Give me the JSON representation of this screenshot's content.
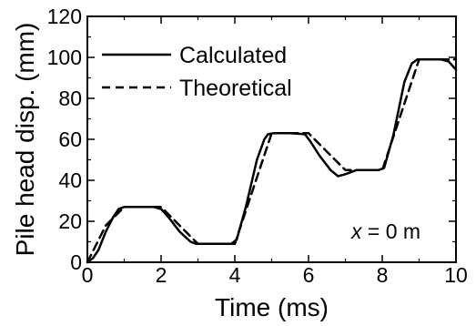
{
  "chart_data": {
    "type": "line",
    "xlabel": "Time (ms)",
    "ylabel": "Pile head disp. (mm)",
    "xlim": [
      0,
      10
    ],
    "ylim": [
      0,
      120
    ],
    "xticks": [
      "0",
      "2",
      "4",
      "6",
      "8",
      "10"
    ],
    "yticks": [
      "0",
      "20",
      "40",
      "60",
      "80",
      "100",
      "120"
    ],
    "xtick_values": [
      0,
      2,
      4,
      6,
      8,
      10
    ],
    "ytick_values": [
      0,
      20,
      40,
      60,
      80,
      100,
      120
    ],
    "grid": false,
    "legend_position": "top-left",
    "annotation": {
      "variable": "x",
      "rest": " = 0 m"
    },
    "series": [
      {
        "name": "Calculated",
        "style": "solid",
        "color": "#000000",
        "x": [
          0,
          0.15,
          0.3,
          0.5,
          0.7,
          0.85,
          1.0,
          1.5,
          1.8,
          2.0,
          2.2,
          2.5,
          2.8,
          2.95,
          3.5,
          3.9,
          4.05,
          4.3,
          4.6,
          4.8,
          4.9,
          5.05,
          5.5,
          5.9,
          6.05,
          6.3,
          6.6,
          6.8,
          7.0,
          7.3,
          7.6,
          7.9,
          8.05,
          8.3,
          8.6,
          8.8,
          8.95,
          9.2,
          9.6,
          9.8,
          10.0
        ],
        "y": [
          0,
          2,
          6,
          15,
          22,
          26,
          27,
          27,
          27,
          26,
          22,
          15,
          10,
          9,
          9,
          9,
          11,
          27,
          50,
          60,
          62.5,
          63,
          63,
          62.5,
          59,
          52,
          45,
          42,
          43,
          45,
          45,
          45,
          46,
          62,
          88,
          97,
          99,
          99,
          99,
          98,
          94
        ]
      },
      {
        "name": "Theoretical",
        "style": "dashed",
        "color": "#000000",
        "x": [
          0,
          0.5,
          1.0,
          2.0,
          3.0,
          4.0,
          5.0,
          6.0,
          7.0,
          8.0,
          9.0,
          10.0
        ],
        "y": [
          0,
          18,
          27,
          27,
          9,
          9,
          63,
          63,
          45,
          45,
          99,
          99
        ]
      }
    ]
  },
  "colors": {
    "axis": "#000000",
    "background": "#ffffff"
  }
}
